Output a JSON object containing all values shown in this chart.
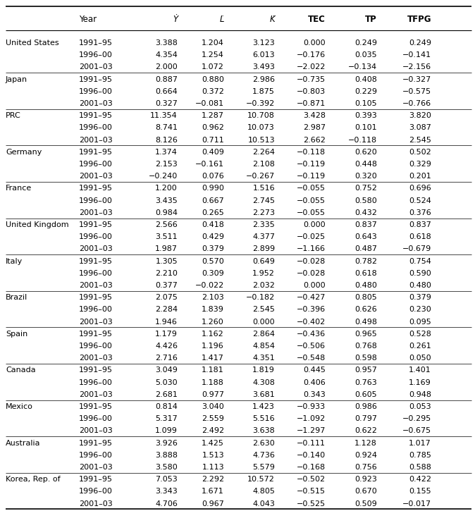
{
  "rows": [
    [
      "United States",
      "1991–95",
      "3.388",
      "1.204",
      "3.123",
      "0.000",
      "0.249",
      "0.249"
    ],
    [
      "",
      "1996–00",
      "4.354",
      "1.254",
      "6.013",
      "−0.176",
      "0.035",
      "−0.141"
    ],
    [
      "",
      "2001–03",
      "2.000",
      "1.072",
      "3.493",
      "−2.022",
      "−0.134",
      "−2.156"
    ],
    [
      "Japan",
      "1991–95",
      "0.887",
      "0.880",
      "2.986",
      "−0.735",
      "0.408",
      "−0.327"
    ],
    [
      "",
      "1996–00",
      "0.664",
      "0.372",
      "1.875",
      "−0.803",
      "0.229",
      "−0.575"
    ],
    [
      "",
      "2001–03",
      "0.327",
      "−0.081",
      "−0.392",
      "−0.871",
      "0.105",
      "−0.766"
    ],
    [
      "PRC",
      "1991–95",
      "11.354",
      "1.287",
      "10.708",
      "3.428",
      "0.393",
      "3.820"
    ],
    [
      "",
      "1996–00",
      "8.741",
      "0.962",
      "10.073",
      "2.987",
      "0.101",
      "3.087"
    ],
    [
      "",
      "2001–03",
      "8.126",
      "0.711",
      "10.513",
      "2.662",
      "−0.118",
      "2.545"
    ],
    [
      "Germany",
      "1991–95",
      "1.374",
      "0.409",
      "2.264",
      "−0.118",
      "0.620",
      "0.502"
    ],
    [
      "",
      "1996–00",
      "2.153",
      "−0.161",
      "2.108",
      "−0.119",
      "0.448",
      "0.329"
    ],
    [
      "",
      "2001–03",
      "−0.240",
      "0.076",
      "−0.267",
      "−0.119",
      "0.320",
      "0.201"
    ],
    [
      "France",
      "1991–95",
      "1.200",
      "0.990",
      "1.516",
      "−0.055",
      "0.752",
      "0.696"
    ],
    [
      "",
      "1996–00",
      "3.435",
      "0.667",
      "2.745",
      "−0.055",
      "0.580",
      "0.524"
    ],
    [
      "",
      "2001–03",
      "0.984",
      "0.265",
      "2.273",
      "−0.055",
      "0.432",
      "0.376"
    ],
    [
      "United Kingdom",
      "1991–95",
      "2.566",
      "0.418",
      "2.335",
      "0.000",
      "0.837",
      "0.837"
    ],
    [
      "",
      "1996–00",
      "3.511",
      "0.429",
      "4.377",
      "−0.025",
      "0.643",
      "0.618"
    ],
    [
      "",
      "2001–03",
      "1.987",
      "0.379",
      "2.899",
      "−1.166",
      "0.487",
      "−0.679"
    ],
    [
      "Italy",
      "1991–95",
      "1.305",
      "0.570",
      "0.649",
      "−0.028",
      "0.782",
      "0.754"
    ],
    [
      "",
      "1996–00",
      "2.210",
      "0.309",
      "1.952",
      "−0.028",
      "0.618",
      "0.590"
    ],
    [
      "",
      "2001–03",
      "0.377",
      "−0.022",
      "2.032",
      "0.000",
      "0.480",
      "0.480"
    ],
    [
      "Brazil",
      "1991–95",
      "2.075",
      "2.103",
      "−0.182",
      "−0.427",
      "0.805",
      "0.379"
    ],
    [
      "",
      "1996–00",
      "2.284",
      "1.839",
      "2.545",
      "−0.396",
      "0.626",
      "0.230"
    ],
    [
      "",
      "2001–03",
      "1.946",
      "1.260",
      "0.000",
      "−0.402",
      "0.498",
      "0.095"
    ],
    [
      "Spain",
      "1991–95",
      "1.179",
      "1.162",
      "2.864",
      "−0.436",
      "0.965",
      "0.528"
    ],
    [
      "",
      "1996–00",
      "4.426",
      "1.196",
      "4.854",
      "−0.506",
      "0.768",
      "0.261"
    ],
    [
      "",
      "2001–03",
      "2.716",
      "1.417",
      "4.351",
      "−0.548",
      "0.598",
      "0.050"
    ],
    [
      "Canada",
      "1991–95",
      "3.049",
      "1.181",
      "1.819",
      "0.445",
      "0.957",
      "1.401"
    ],
    [
      "",
      "1996–00",
      "5.030",
      "1.188",
      "4.308",
      "0.406",
      "0.763",
      "1.169"
    ],
    [
      "",
      "2001–03",
      "2.681",
      "0.977",
      "3.681",
      "0.343",
      "0.605",
      "0.948"
    ],
    [
      "Mexico",
      "1991–95",
      "0.814",
      "3.040",
      "1.423",
      "−0.933",
      "0.986",
      "0.053"
    ],
    [
      "",
      "1996–00",
      "5.317",
      "2.559",
      "5.516",
      "−1.092",
      "0.797",
      "−0.295"
    ],
    [
      "",
      "2001–03",
      "1.099",
      "2.492",
      "3.638",
      "−1.297",
      "0.622",
      "−0.675"
    ],
    [
      "Australia",
      "1991–95",
      "3.926",
      "1.425",
      "2.630",
      "−0.111",
      "1.128",
      "1.017"
    ],
    [
      "",
      "1996–00",
      "3.888",
      "1.513",
      "4.736",
      "−0.140",
      "0.924",
      "0.785"
    ],
    [
      "",
      "2001–03",
      "3.580",
      "1.113",
      "5.579",
      "−0.168",
      "0.756",
      "0.588"
    ],
    [
      "Korea, Rep. of",
      "1991–95",
      "7.053",
      "2.292",
      "10.572",
      "−0.502",
      "0.923",
      "0.422"
    ],
    [
      "",
      "1996–00",
      "3.343",
      "1.671",
      "4.805",
      "−0.515",
      "0.670",
      "0.155"
    ],
    [
      "",
      "2001–03",
      "4.706",
      "0.967",
      "4.043",
      "−0.525",
      "0.509",
      "−0.017"
    ]
  ],
  "country_group_starts": [
    0,
    3,
    6,
    9,
    12,
    15,
    18,
    21,
    24,
    27,
    30,
    33,
    36
  ],
  "background_color": "#ffffff",
  "text_color": "#000000",
  "line_color": "#000000"
}
